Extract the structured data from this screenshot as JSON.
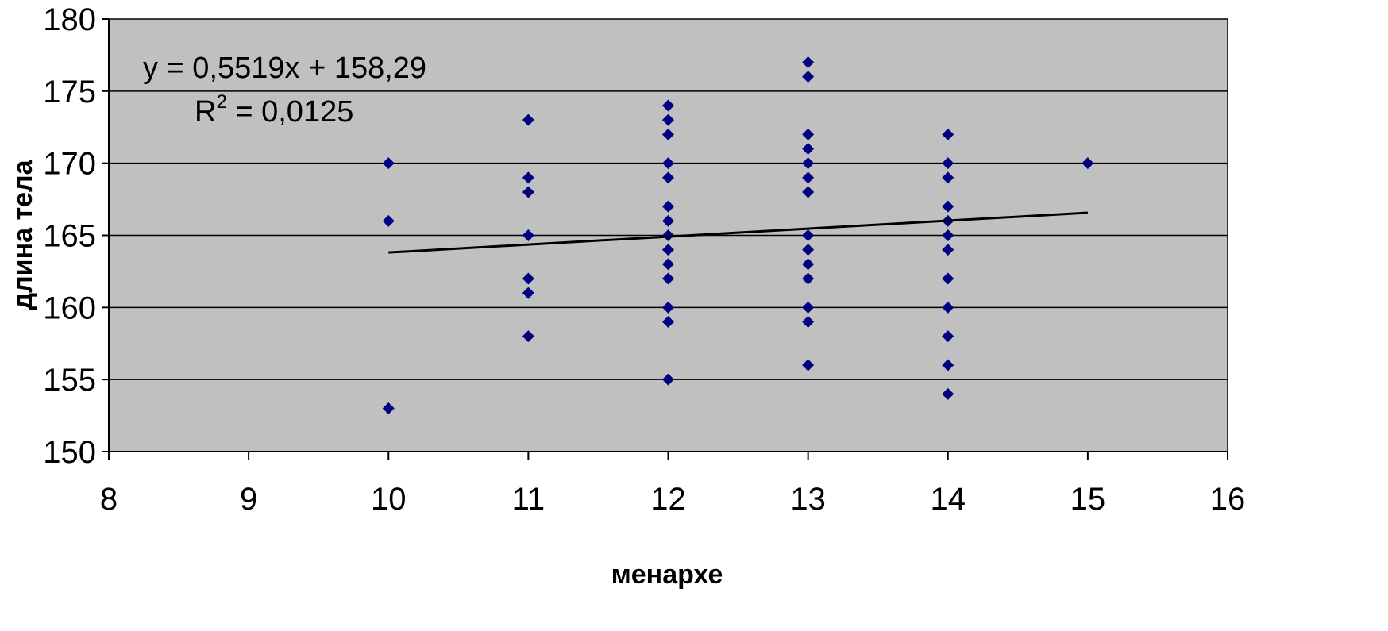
{
  "chart_data": {
    "type": "scatter",
    "title": "",
    "xlabel": "менархе",
    "ylabel": "длина тела",
    "xlim": [
      8,
      16
    ],
    "ylim": [
      150,
      180
    ],
    "xticks": [
      "8",
      "9",
      "10",
      "11",
      "12",
      "13",
      "14",
      "15",
      "16"
    ],
    "yticks": [
      "150",
      "155",
      "160",
      "165",
      "170",
      "175",
      "180"
    ],
    "grid": "horizontal",
    "legend": "none",
    "colors": {
      "plot_background": "#c0c0c0",
      "points": "#000080",
      "trendline": "#000000",
      "gridlines": "#000000"
    },
    "points": [
      {
        "x": 10,
        "y": 170
      },
      {
        "x": 10,
        "y": 166
      },
      {
        "x": 10,
        "y": 153
      },
      {
        "x": 11,
        "y": 173
      },
      {
        "x": 11,
        "y": 169
      },
      {
        "x": 11,
        "y": 168
      },
      {
        "x": 11,
        "y": 165
      },
      {
        "x": 11,
        "y": 162
      },
      {
        "x": 11,
        "y": 161
      },
      {
        "x": 11,
        "y": 158
      },
      {
        "x": 12,
        "y": 174
      },
      {
        "x": 12,
        "y": 173
      },
      {
        "x": 12,
        "y": 172
      },
      {
        "x": 12,
        "y": 170
      },
      {
        "x": 12,
        "y": 169
      },
      {
        "x": 12,
        "y": 167
      },
      {
        "x": 12,
        "y": 166
      },
      {
        "x": 12,
        "y": 165
      },
      {
        "x": 12,
        "y": 164
      },
      {
        "x": 12,
        "y": 163
      },
      {
        "x": 12,
        "y": 162
      },
      {
        "x": 12,
        "y": 160
      },
      {
        "x": 12,
        "y": 159
      },
      {
        "x": 12,
        "y": 155
      },
      {
        "x": 13,
        "y": 177
      },
      {
        "x": 13,
        "y": 176
      },
      {
        "x": 13,
        "y": 172
      },
      {
        "x": 13,
        "y": 171
      },
      {
        "x": 13,
        "y": 170
      },
      {
        "x": 13,
        "y": 169
      },
      {
        "x": 13,
        "y": 168
      },
      {
        "x": 13,
        "y": 165
      },
      {
        "x": 13,
        "y": 164
      },
      {
        "x": 13,
        "y": 163
      },
      {
        "x": 13,
        "y": 162
      },
      {
        "x": 13,
        "y": 160
      },
      {
        "x": 13,
        "y": 159
      },
      {
        "x": 13,
        "y": 156
      },
      {
        "x": 14,
        "y": 172
      },
      {
        "x": 14,
        "y": 170
      },
      {
        "x": 14,
        "y": 169
      },
      {
        "x": 14,
        "y": 167
      },
      {
        "x": 14,
        "y": 166
      },
      {
        "x": 14,
        "y": 165
      },
      {
        "x": 14,
        "y": 164
      },
      {
        "x": 14,
        "y": 162
      },
      {
        "x": 14,
        "y": 160
      },
      {
        "x": 14,
        "y": 158
      },
      {
        "x": 14,
        "y": 156
      },
      {
        "x": 14,
        "y": 154
      },
      {
        "x": 15,
        "y": 170
      }
    ],
    "trendline": {
      "slope": 0.5519,
      "intercept": 158.29,
      "x_range": [
        10,
        15
      ],
      "equation_label": "y = 0,5519x + 158,29",
      "r2_label": "R",
      "r2_exponent": "2",
      "r2_value": " = 0,0125"
    }
  }
}
